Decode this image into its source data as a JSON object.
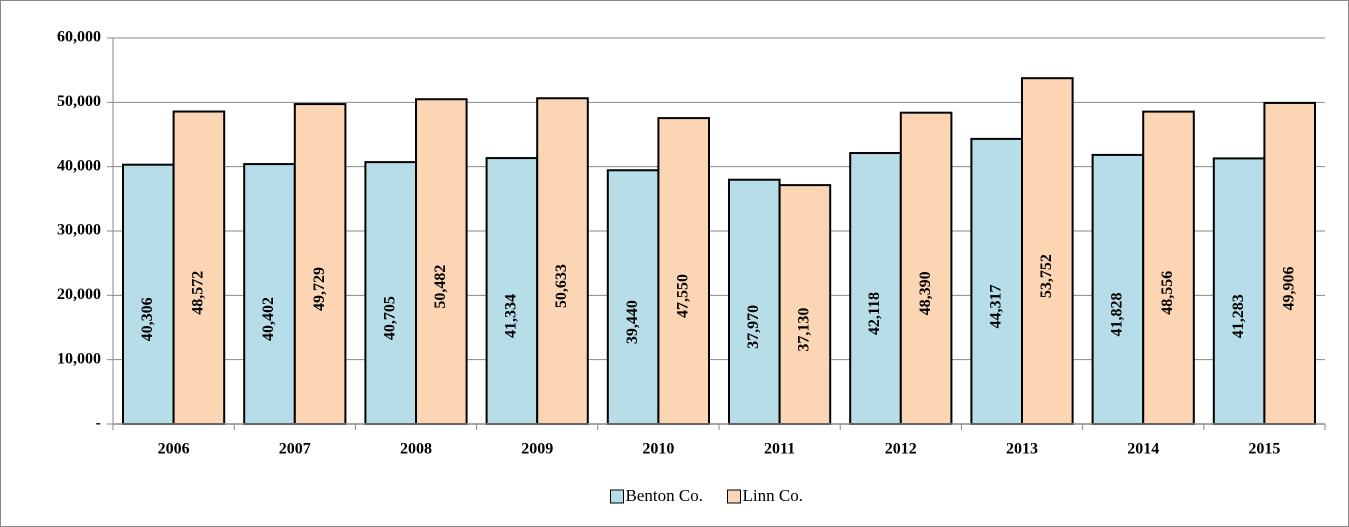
{
  "chart_data": {
    "type": "bar",
    "categories": [
      "2006",
      "2007",
      "2008",
      "2009",
      "2010",
      "2011",
      "2012",
      "2013",
      "2014",
      "2015"
    ],
    "series": [
      {
        "name": "Benton Co.",
        "color": "#b7dde8",
        "values": [
          40306,
          40402,
          40705,
          41334,
          39440,
          37970,
          42118,
          44317,
          41828,
          41283
        ],
        "value_labels": [
          "40,306",
          "40,402",
          "40,705",
          "41,334",
          "39,440",
          "37,970",
          "42,118",
          "44,317",
          "41,828",
          "41,283"
        ]
      },
      {
        "name": "Linn Co.",
        "color": "#fcd5b4",
        "values": [
          48572,
          49729,
          50482,
          50633,
          47550,
          37130,
          48390,
          53752,
          48556,
          49906
        ],
        "value_labels": [
          "48,572",
          "49,729",
          "50,482",
          "50,633",
          "47,550",
          "37,130",
          "48,390",
          "53,752",
          "48,556",
          "49,906"
        ]
      }
    ],
    "ylim": [
      0,
      60000
    ],
    "yticks": [
      {
        "value": 0,
        "label": "-"
      },
      {
        "value": 10000,
        "label": "10,000"
      },
      {
        "value": 20000,
        "label": "20,000"
      },
      {
        "value": 30000,
        "label": "30,000"
      },
      {
        "value": 40000,
        "label": "40,000"
      },
      {
        "value": 50000,
        "label": "50,000"
      },
      {
        "value": 60000,
        "label": "60,000"
      }
    ],
    "grid": true,
    "legend": "bottom"
  }
}
